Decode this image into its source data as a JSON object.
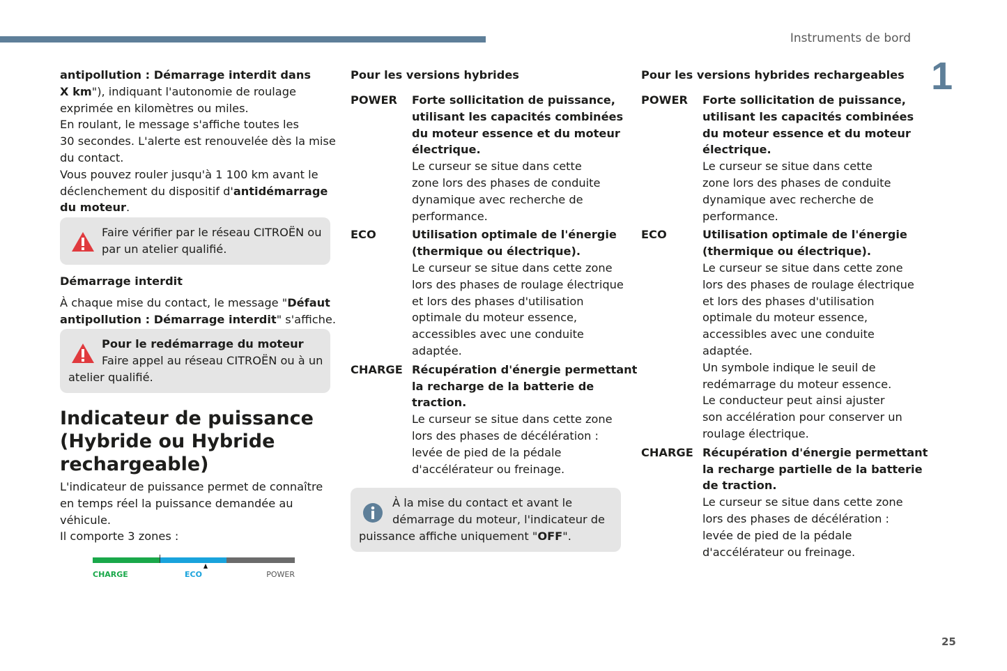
{
  "header": {
    "section": "Instruments de bord",
    "chapter": "1",
    "page": "25"
  },
  "col1": {
    "intro": [
      [
        [
          "antipollution : Démarrage interdit dans",
          1
        ]
      ],
      [
        [
          "X km",
          1
        ],
        [
          "\"), indiquant l'autonomie de roulage",
          0
        ]
      ],
      [
        [
          "exprimée en kilomètres ou miles.",
          0
        ]
      ],
      [
        [
          "En roulant, le message s'affiche toutes les",
          0
        ]
      ],
      [
        [
          "30 secondes. L'alerte est renouvelée dès la mise",
          0
        ]
      ],
      [
        [
          "du contact.",
          0
        ]
      ],
      [
        [
          "Vous pouvez rouler jusqu'à 1 100 km avant le",
          0
        ]
      ],
      [
        [
          "déclenchement du dispositif d'",
          0
        ],
        [
          "antidémarrage",
          1
        ]
      ],
      [
        [
          "du moteur",
          1
        ],
        [
          ".",
          0
        ]
      ]
    ],
    "warning1": [
      [
        [
          "Faire vérifier par le réseau CITROËN ou",
          0
        ]
      ],
      [
        [
          "par un atelier qualifié.",
          0
        ]
      ]
    ],
    "subheading": "Démarrage interdit",
    "para2": [
      [
        [
          "À chaque mise du contact, le message \"",
          0
        ],
        [
          "Défaut",
          1
        ]
      ],
      [
        [
          "antipollution : Démarrage interdit",
          1
        ],
        [
          "\" s'affiche.",
          0
        ]
      ]
    ],
    "warning2": [
      [
        [
          "Pour le redémarrage du moteur",
          1
        ]
      ],
      [
        [
          "Faire appel au réseau CITROËN ou à un",
          0
        ]
      ]
    ],
    "warning2_last": "atelier qualifié.",
    "heading": [
      "Indicateur de puissance",
      "(Hybride ou Hybride",
      "rechargeable)"
    ],
    "para3": [
      [
        [
          "L'indicateur de puissance permet de connaître",
          0
        ]
      ],
      [
        [
          "en temps réel la puissance demandée au",
          0
        ]
      ],
      [
        [
          "véhicule.",
          0
        ]
      ],
      [
        [
          "Il comporte 3 zones :",
          0
        ]
      ]
    ],
    "gauge": {
      "labels": [
        "CHARGE",
        "ECO",
        "POWER"
      ],
      "colors": [
        "#1aa84a",
        "#19a3dc",
        "#6b6b6b"
      ],
      "cursor_zone": "ECO"
    }
  },
  "col2": {
    "heading": "Pour les versions hybrides",
    "defs": [
      {
        "term": "POWER",
        "bold": [
          "Forte sollicitation de puissance,",
          "utilisant les capacités combinées",
          "du moteur essence et du moteur",
          "électrique."
        ],
        "text": [
          "Le curseur se situe dans cette",
          "zone lors des phases de conduite",
          "dynamique avec recherche de",
          "performance."
        ]
      },
      {
        "term": "ECO",
        "bold": [
          "Utilisation optimale de l'énergie",
          "(thermique ou électrique)."
        ],
        "text": [
          "Le curseur se situe dans cette zone",
          "lors des phases de roulage électrique",
          "et lors des phases d'utilisation",
          "optimale du moteur essence,",
          "accessibles avec une conduite",
          "adaptée."
        ]
      },
      {
        "term": "CHARGE",
        "bold": [
          "Récupération d'énergie permettant",
          "la recharge de la batterie de",
          "traction."
        ],
        "text": [
          "Le curseur se situe dans cette zone",
          "lors des phases de décélération :",
          "levée de pied de la pédale",
          "d'accélérateur ou freinage."
        ]
      }
    ],
    "info": [
      [
        [
          "À la mise du contact et avant le",
          0
        ]
      ],
      [
        [
          "démarrage du moteur, l'indicateur de",
          0
        ]
      ]
    ],
    "info_last": [
      [
        "puissance affiche uniquement \"",
        0
      ],
      [
        "OFF",
        1
      ],
      [
        "\".",
        0
      ]
    ]
  },
  "col3": {
    "heading": "Pour les versions hybrides rechargeables",
    "defs": [
      {
        "term": "POWER",
        "bold": [
          "Forte sollicitation de puissance,",
          "utilisant les capacités combinées",
          "du moteur essence et du moteur",
          "électrique."
        ],
        "text": [
          "Le curseur se situe dans cette",
          "zone lors des phases de conduite",
          "dynamique avec recherche de",
          "performance."
        ]
      },
      {
        "term": "ECO",
        "bold": [
          "Utilisation optimale de l'énergie",
          "(thermique ou électrique)."
        ],
        "text": [
          "Le curseur se situe dans cette zone",
          "lors des phases de roulage électrique",
          "et lors des phases d'utilisation",
          "optimale du moteur essence,",
          "accessibles avec une conduite",
          "adaptée.",
          "Un symbole indique le seuil de",
          "redémarrage du moteur essence.",
          "Le conducteur peut ainsi ajuster",
          "son accélération pour conserver un",
          "roulage électrique."
        ]
      },
      {
        "term": "CHARGE",
        "bold": [
          "Récupération d'énergie permettant",
          "la recharge partielle de la batterie",
          "de traction."
        ],
        "text": [
          "Le curseur se situe dans cette zone",
          "lors des phases de décélération :",
          "levée de pied de la pédale",
          "d'accélérateur ou freinage."
        ]
      }
    ]
  }
}
